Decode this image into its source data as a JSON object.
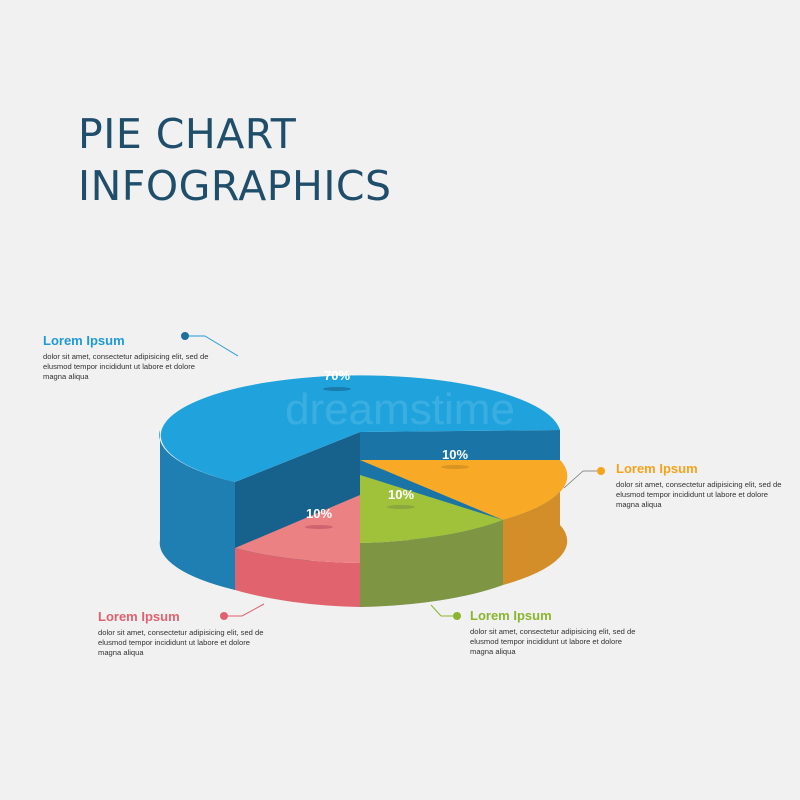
{
  "title": {
    "line1": "PIE CHART",
    "line2": "INFOGRAPHICS"
  },
  "watermark": "dreamstime",
  "chart_data": {
    "type": "pie",
    "categories": [
      "Blue",
      "Orange",
      "Green",
      "Red"
    ],
    "values": [
      70,
      10,
      10,
      10
    ],
    "labels": [
      "70%",
      "10%",
      "10%",
      "10%"
    ],
    "colors": [
      "#1ea1dc",
      "#f9a825",
      "#9cc33b",
      "#e57373"
    ],
    "style": "3d-exploded"
  },
  "callouts": {
    "blue": {
      "title": "Lorem Ipsum",
      "text": "dolor sit amet, consectetur adipisicing elit, sed de elusmod tempor incididunt ut labore et dolore magna aliqua",
      "color": "#1e9ad6"
    },
    "orange": {
      "title": "Lorem Ipsum",
      "text": "dolor sit amet, consectetur adipisicing elit, sed de elusmod tempor incididunt ut labore et dolore magna aliqua",
      "color": "#f5a31b"
    },
    "green": {
      "title": "Lorem Ipsum",
      "text": "dolor sit amet, consectetur adipisicing elit, sed de elusmod tempor incididunt ut labore et dolore magna aliqua",
      "color": "#8ab52f"
    },
    "red": {
      "title": "Lorem Ipsum",
      "text": "dolor sit amet, consectetur adipisicing elit, sed de elusmod tempor incididunt ut labore et dolore magna aliqua",
      "color": "#e06270"
    }
  }
}
